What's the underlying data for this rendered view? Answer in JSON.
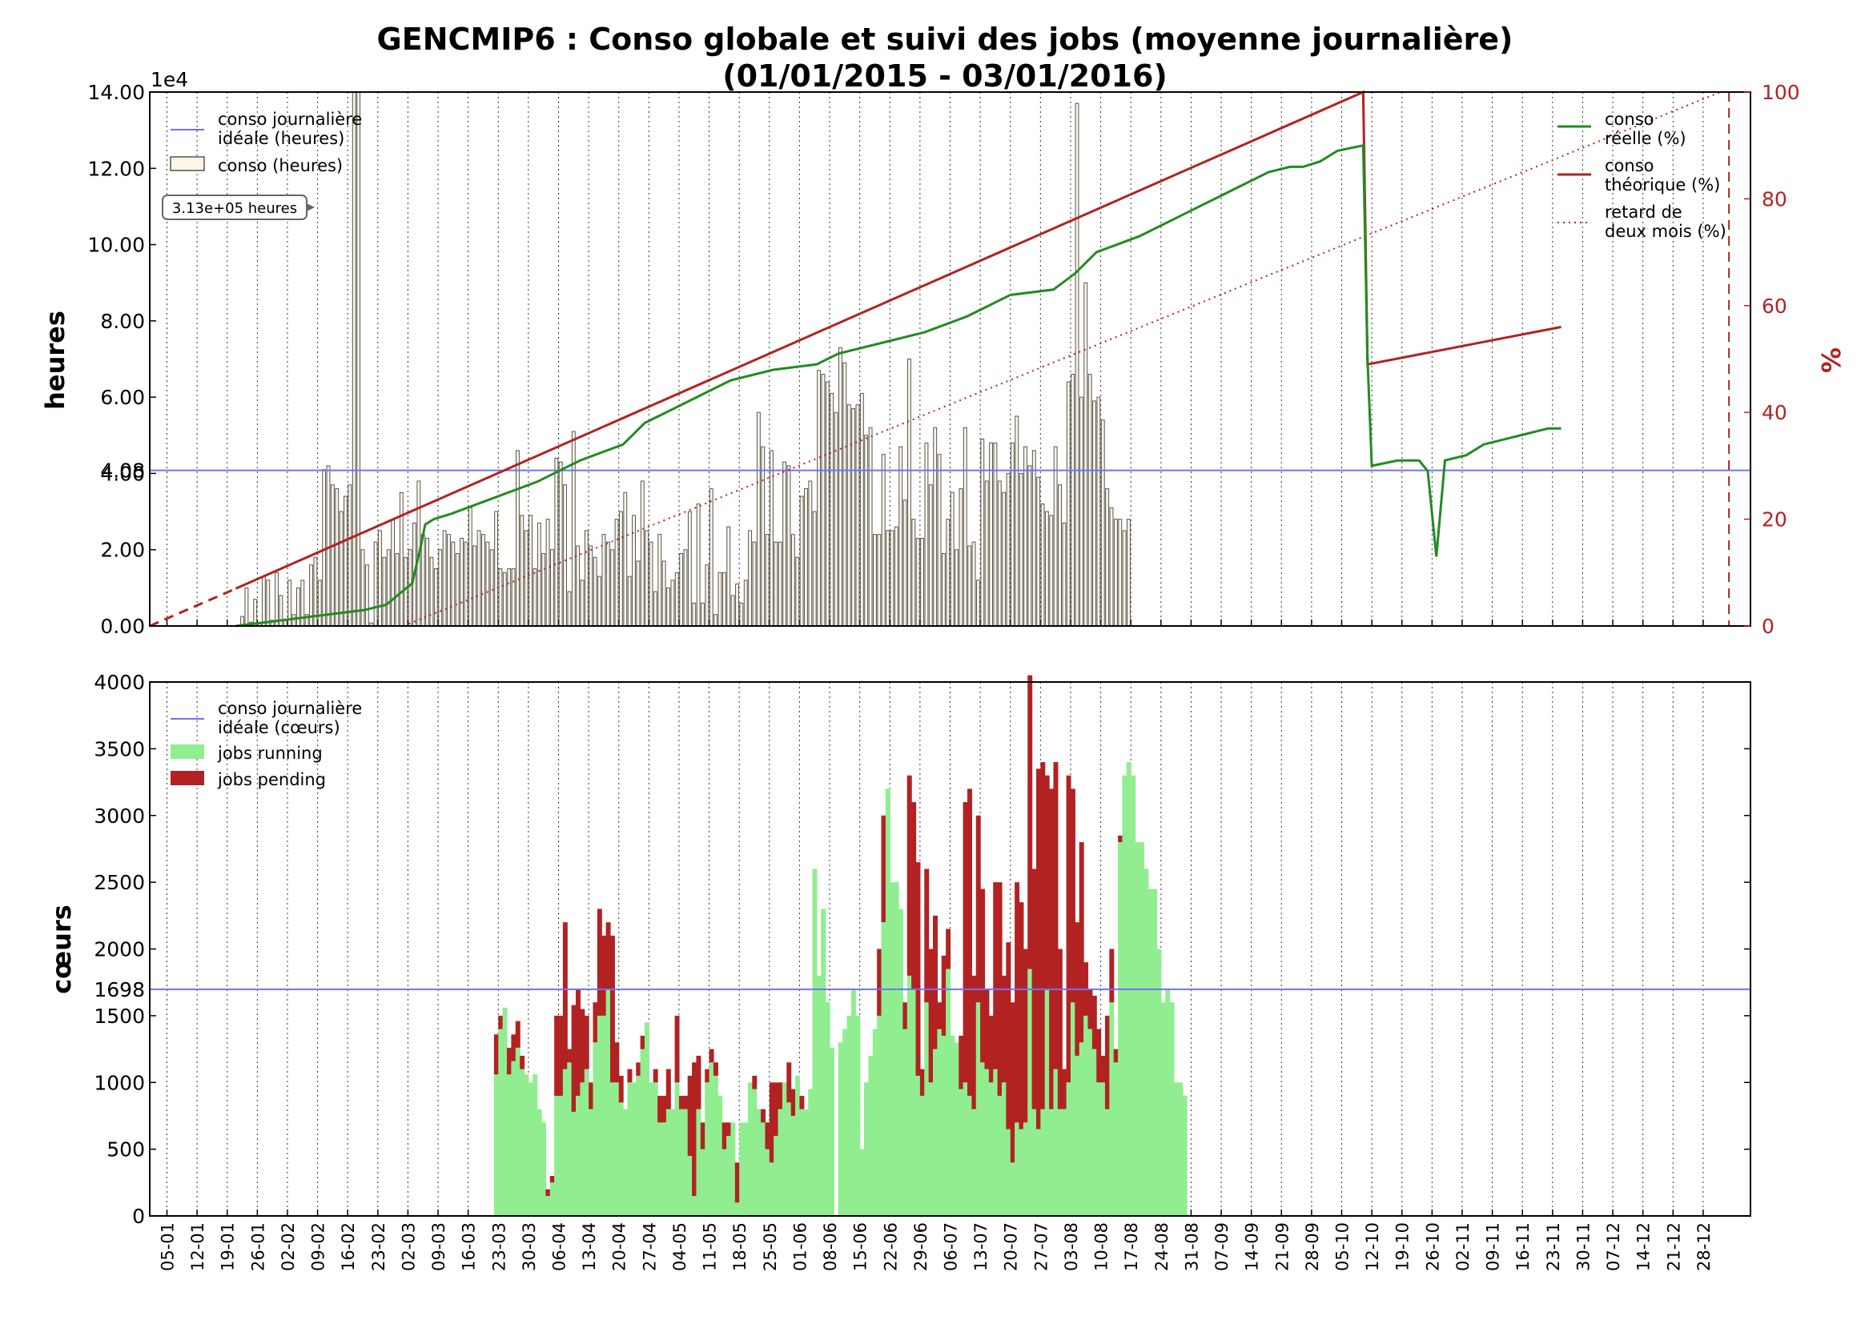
{
  "title_line1": "GENCMIP6 : Conso globale et suivi des jobs (moyenne journalière)",
  "title_line2": "(01/01/2015 - 03/01/2016)",
  "colors": {
    "ideal": "#7070ff",
    "bars_face": "#fdf5e6",
    "bars_edge": "#555555",
    "reelle": "#228b22",
    "theorique": "#b22222",
    "running": "#90ee90",
    "pending": "#b22222",
    "axis_right": "#b22222"
  },
  "chart_data": [
    {
      "type": "bar",
      "panel": "top",
      "ylabel": "heures",
      "y_multiplier": "1e4",
      "ylim": [
        0,
        140000
      ],
      "yticks": [
        "0.00",
        "2.00",
        "4.00",
        "6.00",
        "8.00",
        "10.00",
        "12.00",
        "14.00"
      ],
      "ideal_value_label": "4.08",
      "ideal_value": 40800,
      "annotation": "3.13e+05 heures",
      "legend": {
        "ideal": "conso journalière idéale (heures)",
        "ideal_lines": [
          "conso journalière",
          "idéale (heures)"
        ],
        "bars": "conso (heures)"
      },
      "x_start_day": 0,
      "bars": [
        0,
        0,
        0,
        0,
        0,
        0,
        0,
        0,
        0,
        0,
        0,
        0,
        0,
        0,
        0,
        0,
        0,
        0,
        0,
        0,
        200,
        2500,
        10000,
        1000,
        7000,
        900,
        13000,
        12000,
        1500,
        14000,
        8000,
        1500,
        12000,
        3000,
        10000,
        12000,
        3000,
        16000,
        18000,
        12000,
        41000,
        42000,
        37000,
        36000,
        30000,
        34000,
        37000,
        140000,
        140000,
        20000,
        16000,
        800,
        22000,
        25000,
        18000,
        20000,
        28000,
        19000,
        35000,
        18000,
        20000,
        27000,
        38000,
        24000,
        23000,
        18000,
        15000,
        20000,
        25000,
        24000,
        22000,
        19000,
        23000,
        22000,
        31000,
        21000,
        25000,
        24000,
        22000,
        20000,
        30000,
        15000,
        14000,
        15000,
        15000,
        46000,
        29000,
        25000,
        29000,
        15000,
        27000,
        19000,
        28000,
        20000,
        44000,
        43000,
        37000,
        9000,
        51000,
        21000,
        12000,
        25000,
        21000,
        18000,
        13000,
        24000,
        22000,
        20000,
        28000,
        30000,
        35000,
        13000,
        29000,
        17000,
        38000,
        25000,
        22000,
        9000,
        24000,
        17000,
        10000,
        12000,
        14000,
        19000,
        20000,
        30000,
        6000,
        32000,
        6000,
        16000,
        36000,
        3000,
        14000,
        14000,
        26000,
        8000,
        11000,
        6000,
        12000,
        25000,
        22000,
        56000,
        47000,
        24000,
        46000,
        22000,
        22000,
        43000,
        42000,
        24000,
        18000,
        34000,
        36000,
        38000,
        30000,
        67000,
        66000,
        64000,
        61000,
        56000,
        73000,
        69000,
        58000,
        57000,
        58000,
        61000,
        50000,
        52000,
        24000,
        24000,
        45000,
        25000,
        25000,
        26000,
        47000,
        33000,
        70000,
        28000,
        23000,
        23000,
        48000,
        37000,
        52000,
        45000,
        19000,
        28000,
        35000,
        20000,
        36000,
        52000,
        21000,
        22000,
        12000,
        49000,
        38000,
        48000,
        48000,
        38000,
        35000,
        40000,
        48000,
        55000,
        40000,
        47000,
        42000,
        46000,
        39000,
        32000,
        30000,
        29000,
        47000,
        37000,
        27000,
        64000,
        66000,
        137000,
        60000,
        90000,
        66000,
        59000,
        60000,
        54000,
        36000,
        31000,
        28000,
        28000,
        25000,
        28000
      ],
      "series": [
        {
          "name": "conso réelle (%)",
          "name_lines": [
            "conso",
            "réelle (%)"
          ],
          "axis": "right",
          "points": [
            [
              20,
              0
            ],
            [
              30,
              1
            ],
            [
              40,
              2
            ],
            [
              50,
              3
            ],
            [
              55,
              4
            ],
            [
              58,
              6
            ],
            [
              61,
              8
            ],
            [
              63,
              15
            ],
            [
              64,
              19
            ],
            [
              66,
              20
            ],
            [
              70,
              21
            ],
            [
              80,
              24
            ],
            [
              90,
              27
            ],
            [
              100,
              31
            ],
            [
              110,
              34
            ],
            [
              115,
              38
            ],
            [
              125,
              42
            ],
            [
              130,
              44
            ],
            [
              135,
              46
            ],
            [
              140,
              47
            ],
            [
              145,
              48
            ],
            [
              155,
              49
            ],
            [
              160,
              51
            ],
            [
              170,
              53
            ],
            [
              180,
              55
            ],
            [
              190,
              58
            ],
            [
              200,
              62
            ],
            [
              210,
              63
            ],
            [
              215,
              66
            ],
            [
              220,
              70
            ],
            [
              230,
              73
            ],
            [
              240,
              77
            ],
            [
              245,
              79
            ],
            [
              250,
              81
            ],
            [
              255,
              83
            ],
            [
              260,
              85
            ],
            [
              265,
              86
            ],
            [
              268,
              86
            ],
            [
              272,
              87
            ],
            [
              276,
              89
            ],
            [
              282,
              90
            ],
            [
              283,
              50
            ],
            [
              284,
              30
            ],
            [
              290,
              31
            ],
            [
              295,
              31
            ],
            [
              297,
              29
            ],
            [
              299,
              13
            ],
            [
              301,
              31
            ],
            [
              306,
              32
            ],
            [
              310,
              34
            ],
            [
              315,
              35
            ],
            [
              320,
              36
            ],
            [
              325,
              37
            ],
            [
              328,
              37
            ]
          ]
        },
        {
          "name": "conso théorique (%)",
          "name_lines": [
            "conso",
            "théorique (%)"
          ],
          "axis": "right",
          "points": [
            [
              0,
              0
            ],
            [
              282,
              100
            ],
            [
              283,
              49
            ],
            [
              328,
              56
            ]
          ]
        },
        {
          "name": "retard de deux mois (%)",
          "name_lines": [
            "retard de",
            "deux mois (%)"
          ],
          "axis": "right",
          "points": [
            [
              59,
              0
            ],
            [
              365,
              100
            ]
          ]
        }
      ],
      "y2label": "%",
      "y2lim": [
        0,
        100
      ],
      "y2ticks": [
        "0",
        "20",
        "40",
        "60",
        "80",
        "100"
      ]
    },
    {
      "type": "bar",
      "panel": "bottom",
      "ylabel": "cœurs",
      "ylim": [
        0,
        4000
      ],
      "yticks": [
        "0",
        "500",
        "1000",
        "1500",
        "2000",
        "2500",
        "3000",
        "3500",
        "4000"
      ],
      "ideal_value_label": "1698",
      "ideal_value": 1698,
      "legend": {
        "ideal": "conso journalière idéale (cœurs)",
        "ideal_lines": [
          "conso journalière",
          "idéale (cœurs)"
        ],
        "running": "jobs running",
        "pending": "jobs pending"
      },
      "x_start_day": 80,
      "running": [
        1060,
        1400,
        1560,
        1060,
        1160,
        1260,
        1100,
        1060,
        1000,
        1060,
        800,
        700,
        150,
        250,
        900,
        900,
        1100,
        1150,
        780,
        900,
        1000,
        1100,
        800,
        1300,
        1500,
        1500,
        1700,
        1000,
        1000,
        850,
        800,
        1000,
        1000,
        1050,
        1250,
        1450,
        1000,
        1000,
        700,
        700,
        800,
        800,
        1000,
        800,
        800,
        450,
        150,
        800,
        500,
        1000,
        1150,
        1050,
        900,
        500,
        600,
        700,
        100,
        700,
        700,
        1000,
        950,
        800,
        700,
        500,
        400,
        600,
        800,
        1000,
        850,
        750,
        1050,
        800,
        800,
        950,
        2600,
        1800,
        2300,
        1600,
        1260,
        0,
        1300,
        1400,
        1500,
        1700,
        1500,
        500,
        1000,
        1200,
        1400,
        1500,
        2200,
        3200,
        2500,
        2500,
        2300,
        1400,
        1800,
        1700,
        1050,
        900,
        1600,
        1000,
        1250,
        1400,
        1350,
        1850,
        1350,
        1300,
        950,
        1000,
        900,
        800,
        1600,
        1150,
        1100,
        1000,
        1100,
        900,
        1000,
        650,
        400,
        700,
        650,
        700,
        1850,
        800,
        650,
        800,
        1700,
        800,
        1100,
        800,
        800,
        1000,
        1600,
        1200,
        1300,
        1500,
        1400,
        1250,
        1000,
        1000,
        800,
        1600,
        1150,
        2800,
        3300,
        3400,
        3300,
        2800,
        2800,
        2600,
        2450,
        2450,
        2000,
        1600,
        1700,
        1600,
        1000,
        1000,
        900
      ],
      "pending": [
        300,
        100,
        0,
        200,
        200,
        200,
        100,
        0,
        0,
        0,
        0,
        0,
        50,
        50,
        600,
        600,
        1100,
        100,
        800,
        800,
        550,
        400,
        200,
        300,
        800,
        600,
        500,
        1100,
        300,
        200,
        0,
        100,
        0,
        100,
        100,
        0,
        0,
        100,
        200,
        200,
        300,
        0,
        500,
        100,
        100,
        600,
        1000,
        400,
        200,
        100,
        100,
        100,
        0,
        200,
        100,
        0,
        300,
        0,
        0,
        0,
        100,
        0,
        100,
        200,
        600,
        400,
        200,
        0,
        300,
        200,
        0,
        100,
        0,
        0,
        0,
        0,
        0,
        0,
        0,
        0,
        0,
        0,
        0,
        0,
        0,
        0,
        0,
        0,
        0,
        500,
        800,
        0,
        0,
        0,
        0,
        200,
        1500,
        1400,
        1600,
        200,
        1000,
        1000,
        1000,
        200,
        600,
        300,
        0,
        0,
        400,
        2100,
        2300,
        1000,
        1400,
        1300,
        600,
        500,
        1400,
        1600,
        800,
        1400,
        1200,
        1800,
        1700,
        1300,
        2200,
        1800,
        2700,
        2600,
        1600,
        2400,
        2300,
        1200,
        300,
        2300,
        1600,
        1000,
        1500,
        400,
        300,
        400,
        400,
        200,
        700,
        400,
        100,
        50,
        0,
        0,
        0,
        0,
        0,
        0
      ]
    }
  ],
  "x_labels": [
    "05-01",
    "12-01",
    "19-01",
    "26-01",
    "02-02",
    "09-02",
    "16-02",
    "23-02",
    "02-03",
    "09-03",
    "16-03",
    "23-03",
    "30-03",
    "06-04",
    "13-04",
    "20-04",
    "27-04",
    "04-05",
    "11-05",
    "18-05",
    "25-05",
    "01-06",
    "08-06",
    "15-06",
    "22-06",
    "29-06",
    "06-07",
    "13-07",
    "20-07",
    "27-07",
    "03-08",
    "10-08",
    "17-08",
    "24-08",
    "31-08",
    "07-09",
    "14-09",
    "21-09",
    "28-09",
    "05-10",
    "12-10",
    "19-10",
    "26-10",
    "02-11",
    "09-11",
    "16-11",
    "23-11",
    "30-11",
    "07-12",
    "14-12",
    "21-12",
    "28-12"
  ]
}
